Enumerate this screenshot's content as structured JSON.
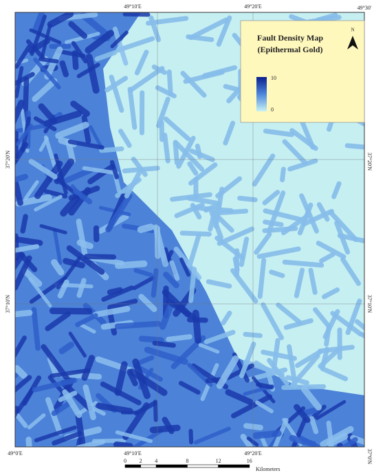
{
  "map": {
    "top_labels": [
      "49°10'E",
      "49°20'E",
      "49°30'"
    ],
    "bottom_labels": [
      "49°0'E",
      "49°10'E",
      "49°20'E"
    ],
    "left_labels": [
      "37°20'N",
      "37°10'N"
    ],
    "right_labels": [
      "37°20'N",
      "37°10'N",
      "37°0'N"
    ]
  },
  "legend": {
    "title": [
      "Fault Density Map",
      "(Epithermal Gold)"
    ],
    "max": "10",
    "min": "0"
  },
  "north": "N",
  "scale": {
    "ticks": [
      0,
      2,
      4,
      8,
      12,
      16
    ],
    "unit": "Kilometers"
  }
}
